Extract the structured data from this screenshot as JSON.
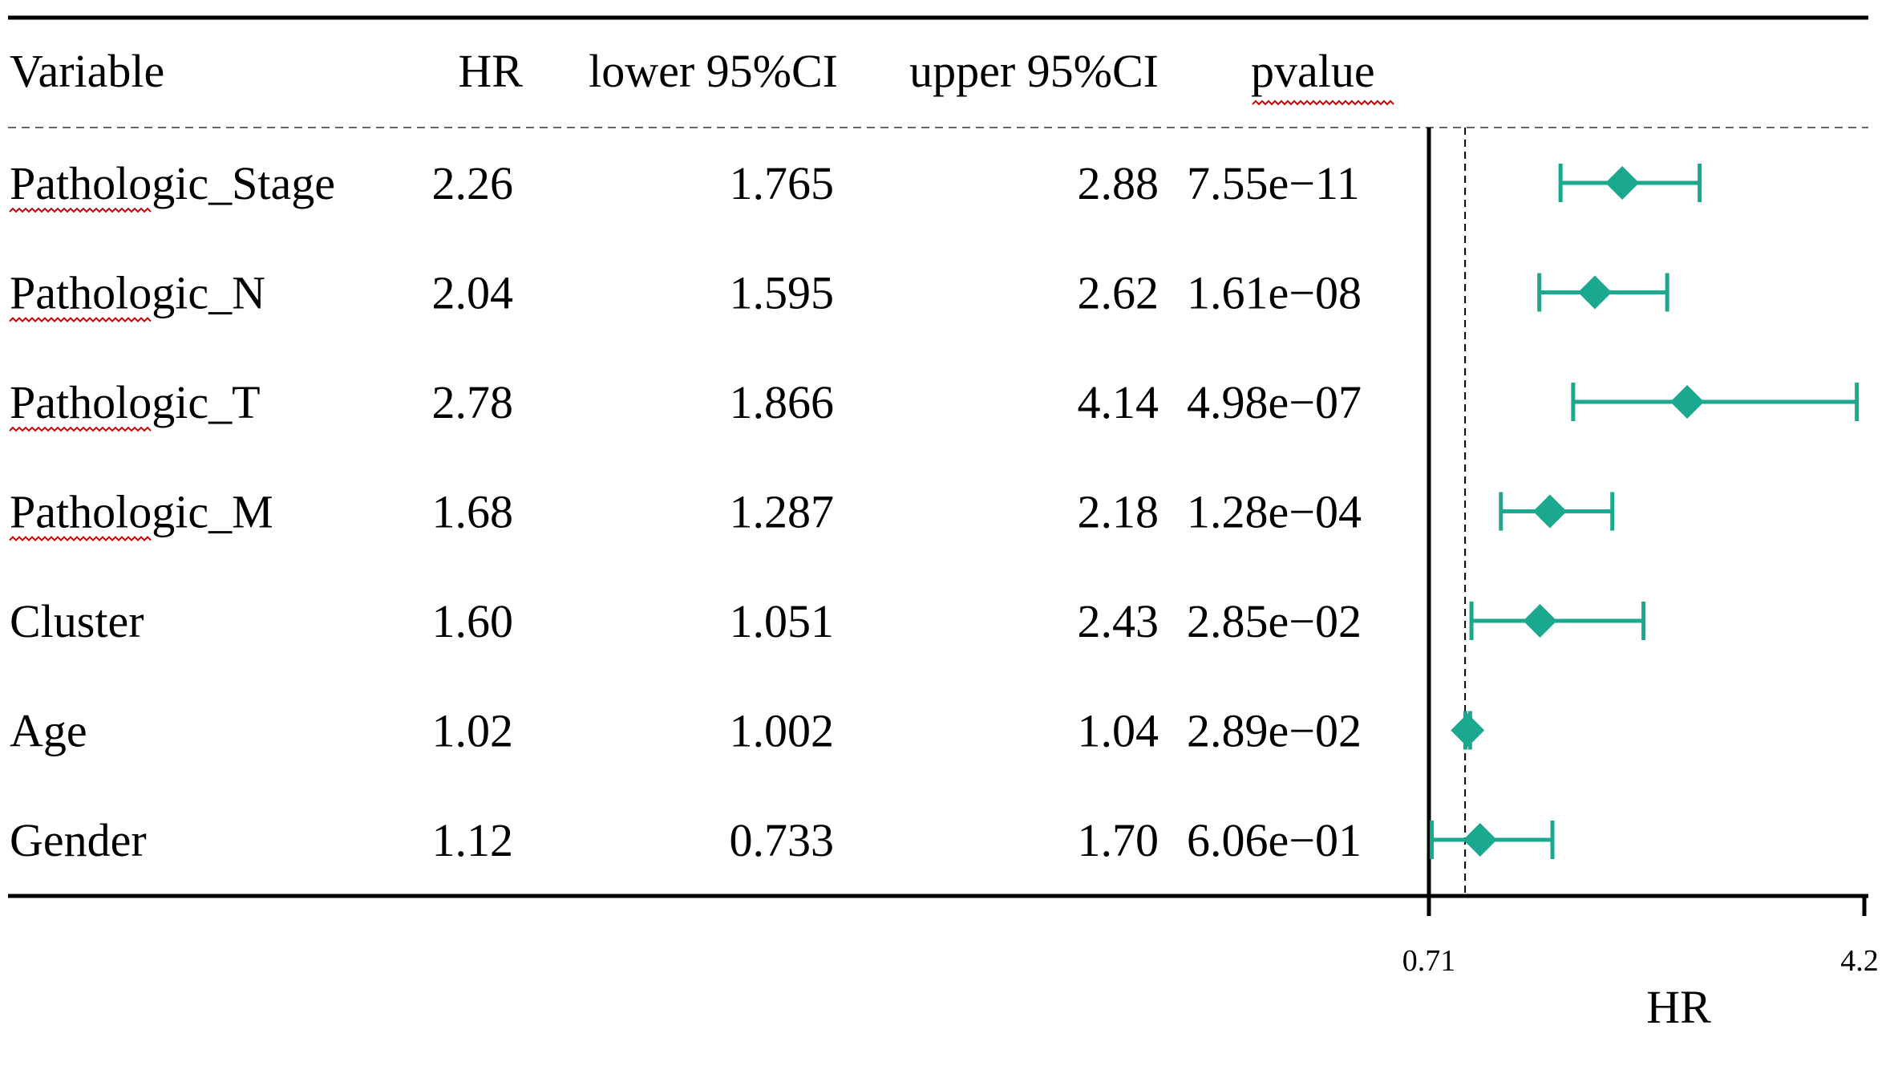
{
  "chart_data": {
    "type": "forest",
    "headers": {
      "variable": "Variable",
      "hr": "HR",
      "lower": "lower 95%CI",
      "upper": "upper 95%CI",
      "pvalue": "pvalue"
    },
    "rows": [
      {
        "variable": "Pathologic_Stage",
        "hr": "2.26",
        "lower": "1.765",
        "upper": "2.88",
        "pvalue": "7.55e−11",
        "hr_value": 2.26,
        "lower_value": 1.765,
        "upper_value": 2.88
      },
      {
        "variable": "Pathologic_N",
        "hr": "2.04",
        "lower": "1.595",
        "upper": "2.62",
        "pvalue": "1.61e−08",
        "hr_value": 2.04,
        "lower_value": 1.595,
        "upper_value": 2.62
      },
      {
        "variable": "Pathologic_T",
        "hr": "2.78",
        "lower": "1.866",
        "upper": "4.14",
        "pvalue": "4.98e−07",
        "hr_value": 2.78,
        "lower_value": 1.866,
        "upper_value": 4.14
      },
      {
        "variable": "Pathologic_M",
        "hr": "1.68",
        "lower": "1.287",
        "upper": "2.18",
        "pvalue": "1.28e−04",
        "hr_value": 1.68,
        "lower_value": 1.287,
        "upper_value": 2.18
      },
      {
        "variable": "Cluster",
        "hr": "1.60",
        "lower": "1.051",
        "upper": "2.43",
        "pvalue": "2.85e−02",
        "hr_value": 1.6,
        "lower_value": 1.051,
        "upper_value": 2.43
      },
      {
        "variable": "Age",
        "hr": "1.02",
        "lower": "1.002",
        "upper": "1.04",
        "pvalue": "2.89e−02",
        "hr_value": 1.02,
        "lower_value": 1.002,
        "upper_value": 1.04
      },
      {
        "variable": "Gender",
        "hr": "1.12",
        "lower": "0.733",
        "upper": "1.70",
        "pvalue": "6.06e−01",
        "hr_value": 1.12,
        "lower_value": 0.733,
        "upper_value": 1.7
      }
    ],
    "x_axis": {
      "label": "HR",
      "min": 0.71,
      "max": 4.2,
      "ticks": [
        "0.71",
        "4.2"
      ],
      "reference_line": 1
    },
    "colors": {
      "marker": "#1aa88f",
      "text": "#000000",
      "spellcheck": "#cc0000"
    }
  }
}
